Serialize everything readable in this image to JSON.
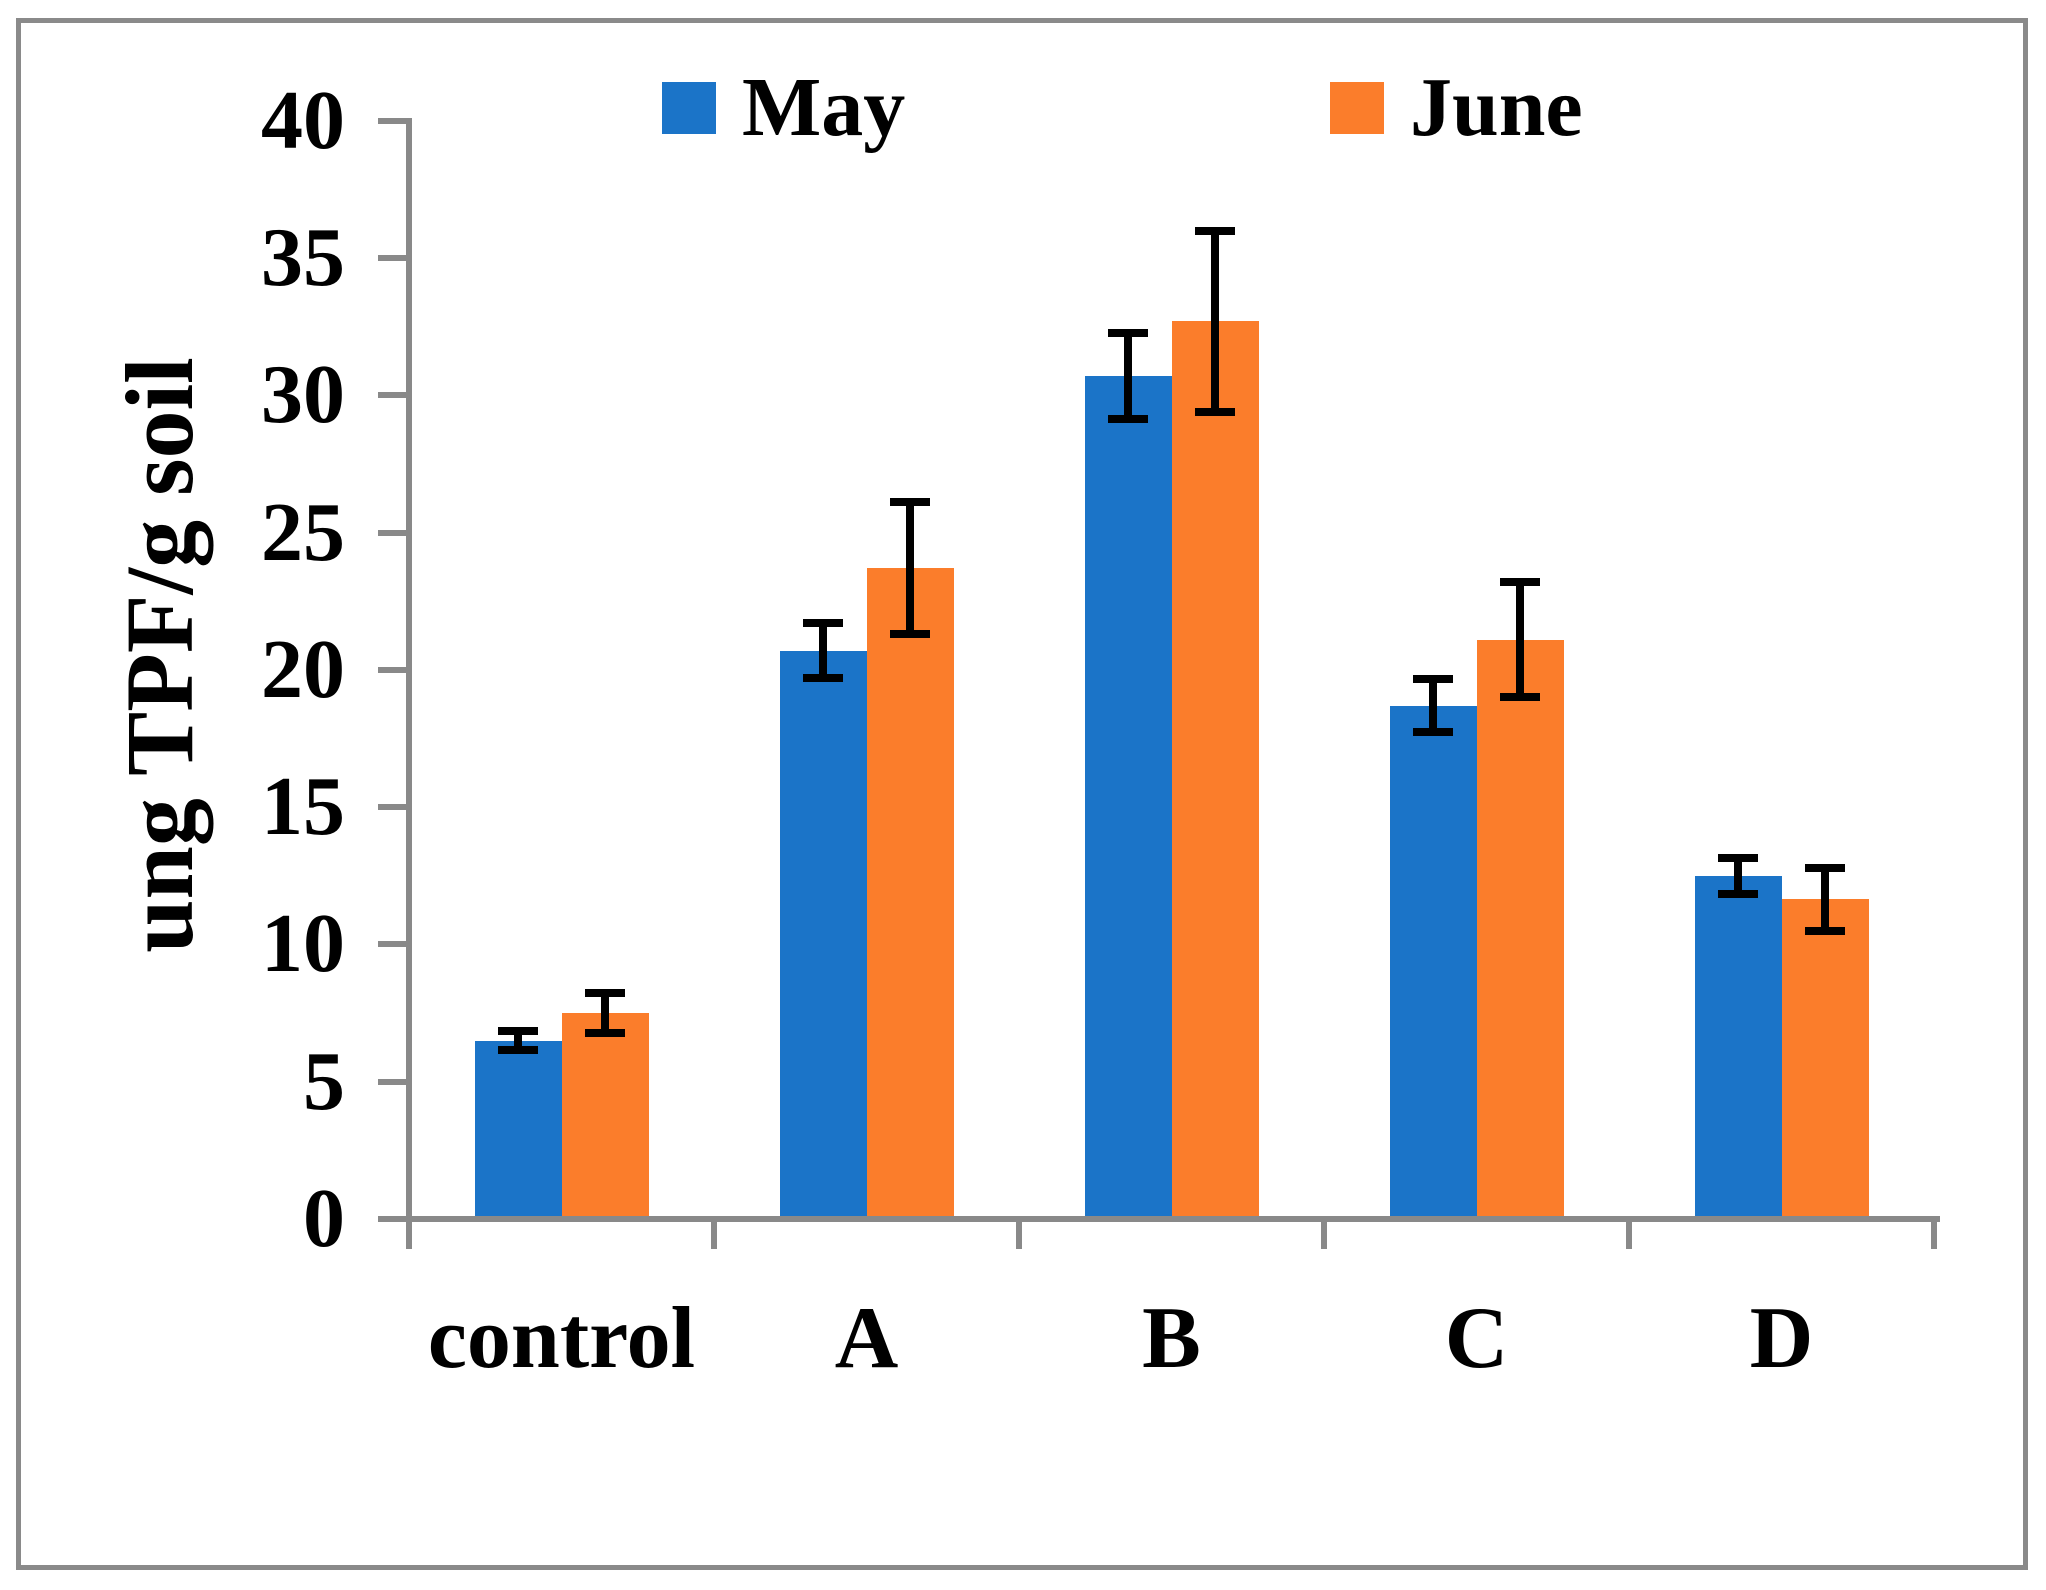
{
  "figure": {
    "background": "#ffffff",
    "border_color": "#8a8a8a"
  },
  "chart_data": {
    "type": "bar",
    "title": "",
    "xlabel": "",
    "ylabel": "ung TPF/g soil",
    "categories": [
      "control",
      "A",
      "B",
      "C",
      "D"
    ],
    "series": [
      {
        "name": "May",
        "color": "#1b74c8",
        "values": [
          6.5,
          20.7,
          30.7,
          18.7,
          12.5
        ],
        "errors": [
          0.36,
          1.0,
          1.55,
          0.95,
          0.65
        ]
      },
      {
        "name": "June",
        "color": "#fb7d2b",
        "values": [
          7.5,
          23.7,
          32.7,
          21.1,
          11.65
        ],
        "errors": [
          0.72,
          2.4,
          3.3,
          2.1,
          1.15
        ]
      }
    ],
    "ylim": [
      0,
      40
    ],
    "ytick_step": 5,
    "yticks": [
      0,
      5,
      10,
      15,
      20,
      25,
      30,
      35,
      40
    ],
    "grid": false,
    "legend_position": "top",
    "axis_color": "#898989",
    "error_bar_color": "#000000"
  }
}
